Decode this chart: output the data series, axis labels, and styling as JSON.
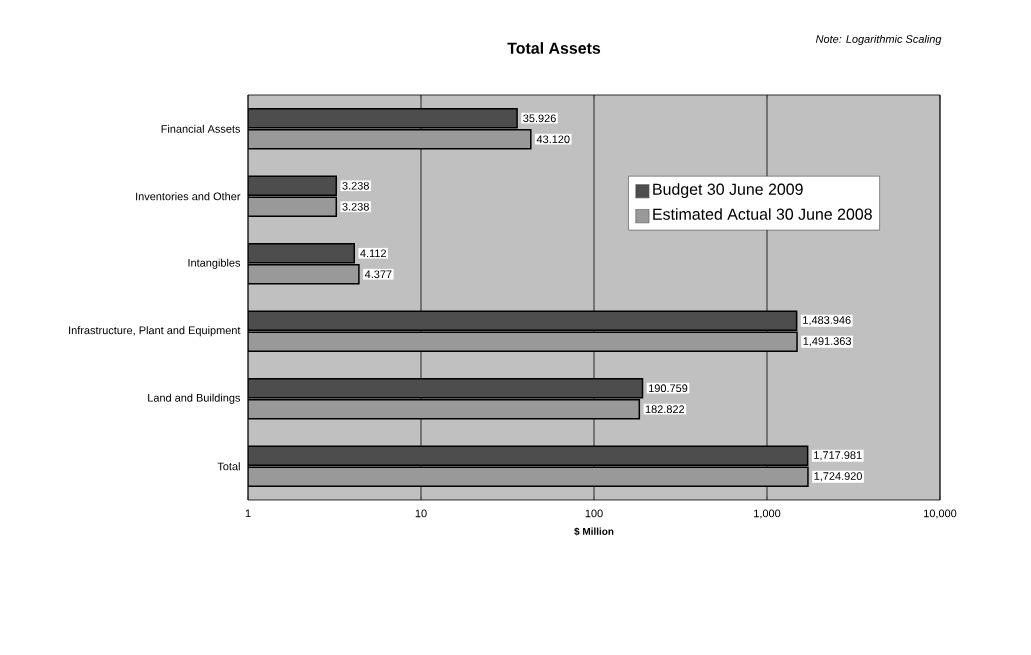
{
  "chart_data": {
    "type": "bar",
    "orientation": "horizontal",
    "title": "Total Assets",
    "xlabel": "$ Million",
    "annotations": [
      "Note: Logarithmic Scaling"
    ],
    "categories": [
      "Financial Assets",
      "Inventories and Other",
      "Intangibles",
      "Infrastructure, Plant and Equipment",
      "Land and Buildings",
      "Total"
    ],
    "series": [
      {
        "name": "Budget 30 June 2009",
        "color": "#4d4d4d",
        "values": [
          35.926,
          3.238,
          4.112,
          1483.946,
          190.759,
          1717.981
        ],
        "value_labels": [
          "35.926",
          "3.238",
          "4.112",
          "1,483.946",
          "190.759",
          "1,717.981"
        ]
      },
      {
        "name": "Estimated Actual 30 June 2008",
        "color": "#999999",
        "values": [
          43.12,
          3.238,
          4.377,
          1491.363,
          182.822,
          1724.92
        ],
        "value_labels": [
          "43.120",
          "3.238",
          "4.377",
          "1,491.363",
          "182.822",
          "1,724.920"
        ]
      }
    ],
    "log": "x",
    "xlim": [
      1,
      10000
    ],
    "xticks": [
      1,
      10,
      100,
      {
        "value": 1000,
        "label": "1,000"
      },
      {
        "value": 10000,
        "label": "10,000"
      }
    ],
    "grid": "x",
    "legend": "top right"
  }
}
